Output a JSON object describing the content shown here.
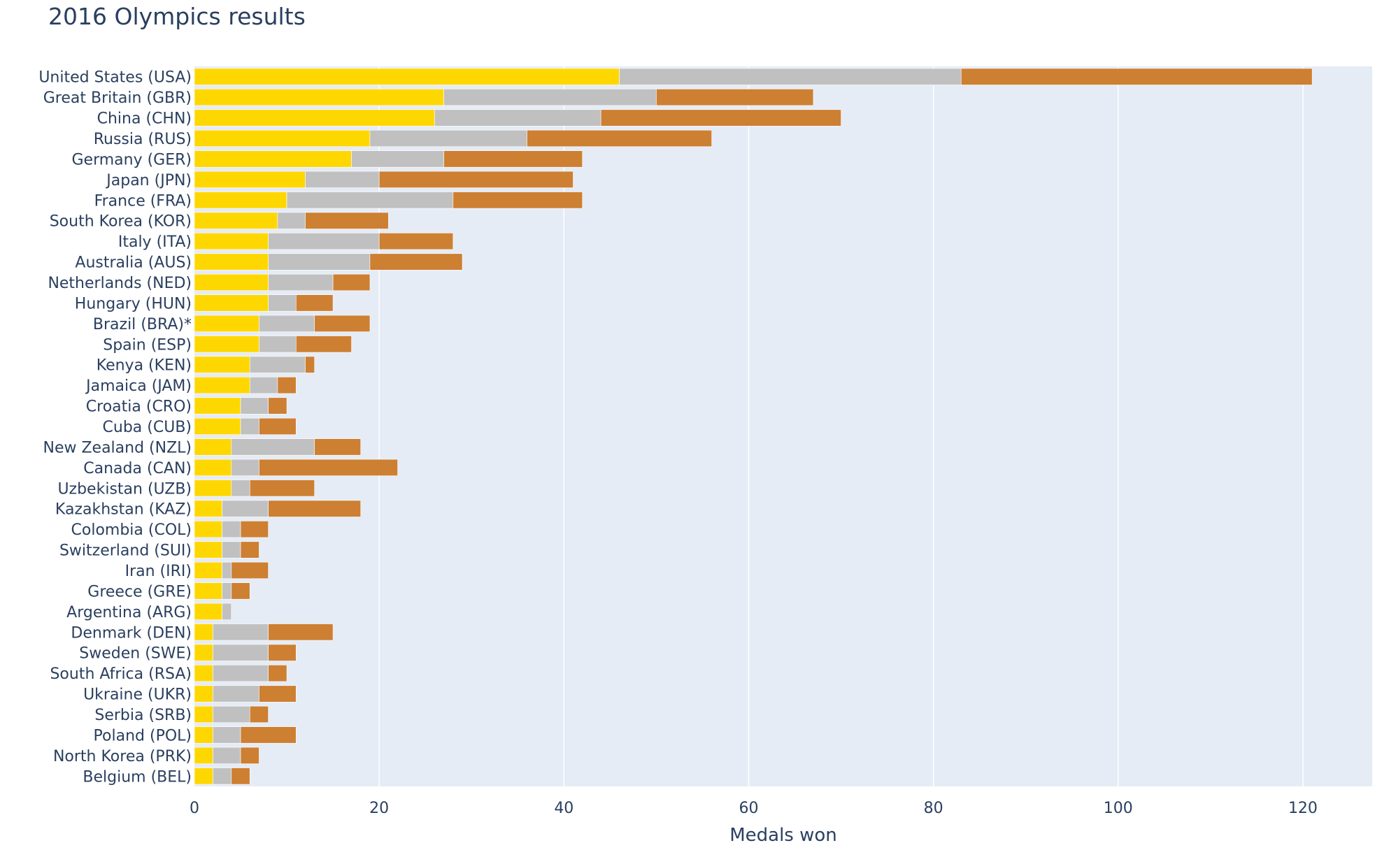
{
  "chart_data": {
    "type": "bar",
    "orientation": "horizontal",
    "barmode": "stack",
    "title": "2016 Olympics results",
    "xlabel": "Medals won",
    "ylabel": "",
    "xlim": [
      0,
      127.5
    ],
    "xticks": [
      0,
      20,
      40,
      60,
      80,
      100,
      120
    ],
    "grid": true,
    "legend": "none",
    "colors": {
      "plot_background": "#e5ecf6",
      "gridline": "#ffffff",
      "text": "#2a3f5f"
    },
    "categories": [
      "United States (USA)",
      "Great Britain (GBR)",
      "China (CHN)",
      "Russia (RUS)",
      "Germany (GER)",
      "Japan (JPN)",
      "France (FRA)",
      "South Korea (KOR)",
      "Italy (ITA)",
      "Australia (AUS)",
      "Netherlands (NED)",
      "Hungary (HUN)",
      "Brazil (BRA)*",
      "Spain (ESP)",
      "Kenya (KEN)",
      "Jamaica (JAM)",
      "Croatia (CRO)",
      "Cuba (CUB)",
      "New Zealand (NZL)",
      "Canada (CAN)",
      "Uzbekistan (UZB)",
      "Kazakhstan (KAZ)",
      "Colombia (COL)",
      "Switzerland (SUI)",
      "Iran (IRI)",
      "Greece (GRE)",
      "Argentina (ARG)",
      "Denmark (DEN)",
      "Sweden (SWE)",
      "South Africa (RSA)",
      "Ukraine (UKR)",
      "Serbia (SRB)",
      "Poland (POL)",
      "North Korea (PRK)",
      "Belgium (BEL)"
    ],
    "series": [
      {
        "color": "#ffd700",
        "values": [
          46,
          27,
          26,
          19,
          17,
          12,
          10,
          9,
          8,
          8,
          8,
          8,
          7,
          7,
          6,
          6,
          5,
          5,
          4,
          4,
          4,
          3,
          3,
          3,
          3,
          3,
          3,
          2,
          2,
          2,
          2,
          2,
          2,
          2,
          2
        ]
      },
      {
        "color": "#c0c0c0",
        "values": [
          37,
          23,
          18,
          17,
          10,
          8,
          18,
          3,
          12,
          11,
          7,
          3,
          6,
          4,
          6,
          3,
          3,
          2,
          9,
          3,
          2,
          5,
          2,
          2,
          1,
          1,
          1,
          6,
          6,
          6,
          5,
          4,
          3,
          3,
          2
        ]
      },
      {
        "color": "#cd7f32",
        "values": [
          38,
          17,
          26,
          20,
          15,
          21,
          14,
          9,
          8,
          10,
          4,
          4,
          6,
          6,
          1,
          2,
          2,
          4,
          5,
          15,
          7,
          10,
          3,
          2,
          4,
          2,
          0,
          7,
          3,
          2,
          4,
          2,
          6,
          2,
          2
        ]
      }
    ]
  }
}
